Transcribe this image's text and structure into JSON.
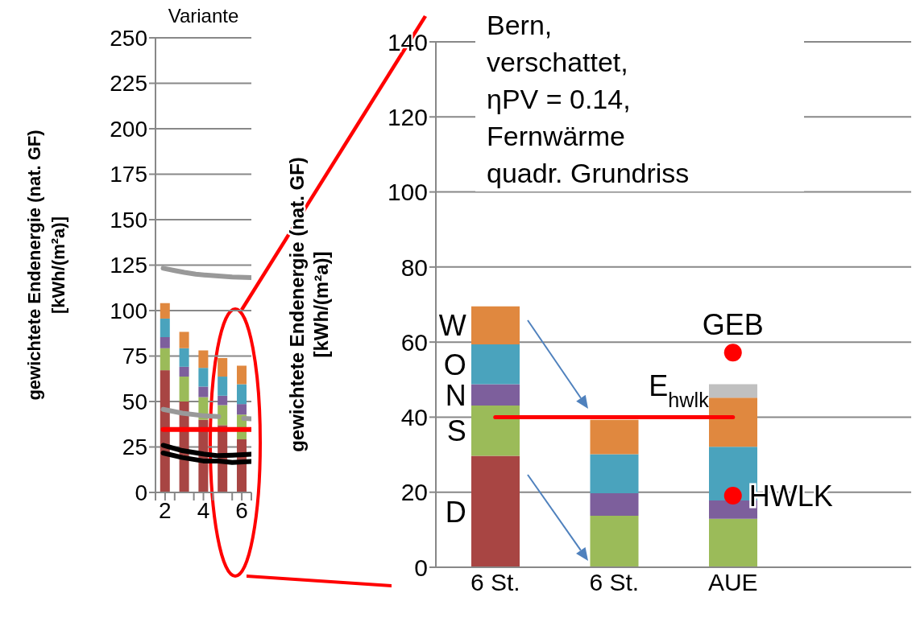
{
  "chart_data": [
    {
      "type": "bar",
      "title": "Variante",
      "ylabel": "gewichtete Endenergie (nat. GF)\n[kWh/(m²a)]",
      "stacked": true,
      "x": [
        2,
        3,
        4,
        5,
        6
      ],
      "xlim": [
        1.5,
        6.5
      ],
      "xticks": [
        {
          "value": 1.5,
          "label": null
        },
        {
          "value": 2,
          "label": "2"
        },
        {
          "value": 2.5,
          "label": null
        },
        {
          "value": 3.5,
          "label": null
        },
        {
          "value": 4,
          "label": "4"
        },
        {
          "value": 4.5,
          "label": null
        },
        {
          "value": 5.5,
          "label": null
        },
        {
          "value": 6,
          "label": "6"
        },
        {
          "value": 6.5,
          "label": null
        }
      ],
      "ylim": [
        0,
        250
      ],
      "yticks": [
        0,
        25,
        50,
        75,
        100,
        125,
        150,
        175,
        200,
        225,
        250
      ],
      "grid": "y",
      "line_style": "solid",
      "series": [
        {
          "color": "#a84543",
          "values": [
            67.2,
            50,
            40,
            37,
            29.2
          ]
        },
        {
          "color": "#9bbb59",
          "values": [
            12.1,
            13.7,
            12.4,
            11,
            13.6
          ]
        },
        {
          "color": "#7d5f9c",
          "values": [
            6.1,
            5.4,
            5.8,
            5.2,
            5.8
          ]
        },
        {
          "color": "#4aa3bd",
          "values": [
            10.2,
            10.2,
            10.3,
            10.5,
            10.9
          ]
        },
        {
          "color": "#e0883f",
          "values": [
            8.5,
            9,
            9.6,
            10.2,
            10.2
          ]
        },
        {
          "type": "line",
          "color": "#999999",
          "x": [
            1.9,
            2.5,
            3,
            3.6,
            4.5,
            5.5,
            6.5
          ],
          "values": [
            123.3,
            122,
            121,
            120,
            119.2,
            118.5,
            118.1
          ]
        },
        {
          "type": "line",
          "color": "#999999",
          "x": [
            1.9,
            2.9,
            4,
            4.8,
            5.4,
            6.1,
            6.5
          ],
          "values": [
            45.7,
            43.6,
            42.2,
            41.7,
            null,
            40.7,
            40.5
          ]
        },
        {
          "type": "line",
          "color": "#000000",
          "x": [
            1.9,
            2.9,
            4,
            4.7,
            5.5,
            6.5
          ],
          "values": [
            25.9,
            23,
            21.1,
            20.2,
            20.5,
            21
          ]
        },
        {
          "type": "line",
          "color": "#000000",
          "x": [
            1.9,
            2.9,
            4,
            4.8,
            5.5,
            6.5
          ],
          "values": [
            21.7,
            19.2,
            17.3,
            17.3,
            16.5,
            17
          ]
        },
        {
          "type": "line",
          "color": "#ff0000",
          "x": [
            1.9,
            6.5
          ],
          "values": [
            34.6,
            34.6
          ]
        }
      ]
    },
    {
      "type": "bar",
      "ylabel": "gewichtete Endenergie (nat. GF)\n[kWh/(m²a)]",
      "stacked": true,
      "categories": [
        "6 St.",
        "6 St.",
        "AUE",
        null
      ],
      "ylim": [
        0,
        140
      ],
      "yticks": [
        0,
        20,
        40,
        60,
        80,
        100,
        120,
        140
      ],
      "grid": "y",
      "line_style": "solid",
      "annotations": [
        "Bern,\nverschattet,\nηPV = 0.14,\nFernwärme\nquadr. Grundriss"
      ],
      "series": [
        {
          "name": "D",
          "color": "#a84543",
          "values": [
            29.7,
            null,
            null,
            null
          ]
        },
        {
          "name": "S",
          "color": "#9bbb59",
          "values": [
            13.4,
            13.7,
            12.9,
            null
          ]
        },
        {
          "name": "N",
          "color": "#7d5f9c",
          "values": [
            5.7,
            6,
            4.9,
            null
          ]
        },
        {
          "name": "O",
          "color": "#4aa3bd",
          "values": [
            10.6,
            10.4,
            14.3,
            null
          ]
        },
        {
          "name": "W",
          "color": "#e0883f",
          "values": [
            10.1,
            9.2,
            13.1,
            null
          ]
        },
        {
          "color": "#c0c0c0",
          "values": [
            null,
            null,
            3.6,
            null
          ]
        },
        {
          "type": "line",
          "name": "E$_{hwlk}$",
          "color": "#ff0000",
          "values": [
            40,
            40,
            40,
            null
          ]
        },
        {
          "type": "scatter",
          "name": "GEB",
          "color": "#ff0000",
          "marker": "circle",
          "values": [
            null,
            null,
            57.2,
            null
          ]
        },
        {
          "type": "scatter",
          "name": "HWLK",
          "color": "#ff0000",
          "marker": "circle",
          "values": [
            null,
            null,
            19.1,
            null
          ]
        }
      ]
    }
  ]
}
